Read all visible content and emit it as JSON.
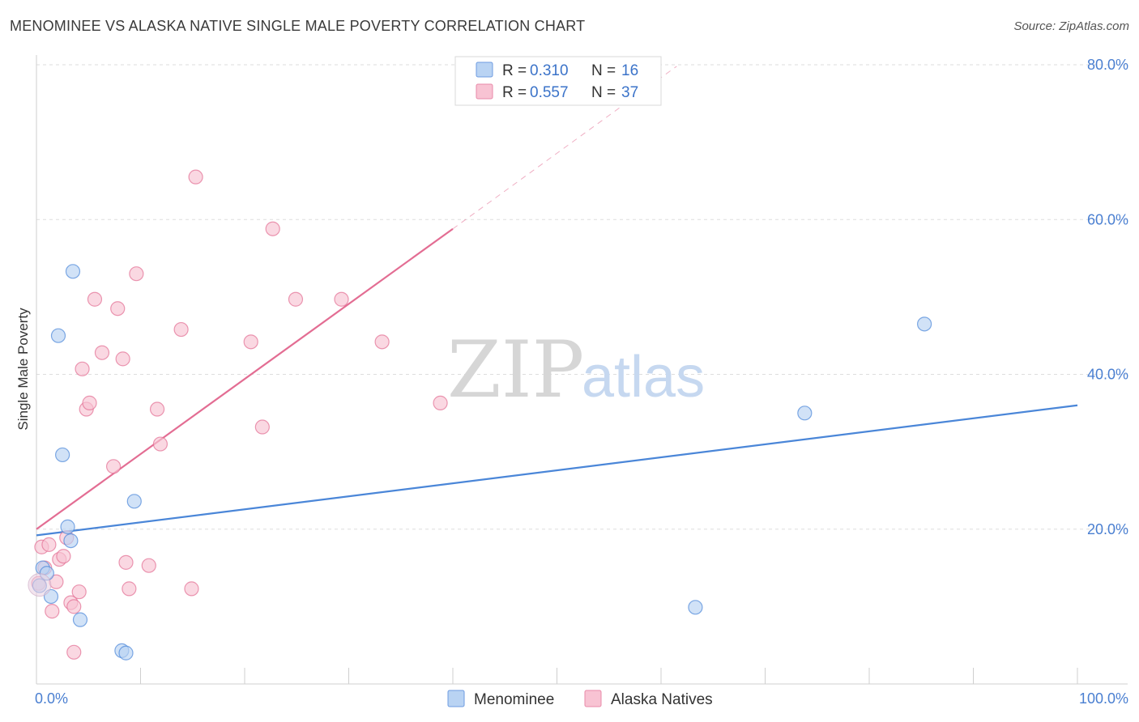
{
  "header": {
    "title": "MENOMINEE VS ALASKA NATIVE SINGLE MALE POVERTY CORRELATION CHART",
    "source": "Source: ZipAtlas.com"
  },
  "watermark": {
    "zip": "ZIP",
    "atlas": "atlas"
  },
  "colors": {
    "blue": "#4a86d8",
    "blue_fill": "#b9d3f3",
    "pink": "#e36d93",
    "pink_fill": "#f8c3d3",
    "grid": "#dddddd",
    "tick_text": "#4a7fd1"
  },
  "chart_data": {
    "type": "scatter",
    "title": "MENOMINEE VS ALASKA NATIVE SINGLE MALE POVERTY CORRELATION CHART",
    "ylabel": "Single Male Poverty",
    "xlabel": "",
    "xlim": [
      0,
      100
    ],
    "ylim": [
      0,
      80
    ],
    "y_ticks": [
      {
        "value": 20,
        "label": "20.0%"
      },
      {
        "value": 40,
        "label": "40.0%"
      },
      {
        "value": 60,
        "label": "60.0%"
      },
      {
        "value": 80,
        "label": "80.0%"
      }
    ],
    "x_ticks": [
      {
        "value": 0,
        "label": "0.0%"
      },
      {
        "value": 100,
        "label": "100.0%"
      }
    ],
    "grid": true,
    "legend_placement": "top-center",
    "legend": [
      {
        "r_label": "R =",
        "r": "0.310",
        "n_label": "N =",
        "n": "16"
      },
      {
        "r_label": "R =",
        "r": "0.557",
        "n_label": "N =",
        "n": "37"
      }
    ],
    "series": [
      {
        "name": "Menominee",
        "color": "#4a86d8",
        "fill": "#b9d3f3",
        "points": [
          [
            0.3,
            12.7
          ],
          [
            0.6,
            15.0
          ],
          [
            1.0,
            14.3
          ],
          [
            1.4,
            11.3
          ],
          [
            2.1,
            45.0
          ],
          [
            2.5,
            29.6
          ],
          [
            3.0,
            20.3
          ],
          [
            3.3,
            18.5
          ],
          [
            3.5,
            53.3
          ],
          [
            4.2,
            8.3
          ],
          [
            8.2,
            4.3
          ],
          [
            8.6,
            4.0
          ],
          [
            9.4,
            23.6
          ],
          [
            63.3,
            9.9
          ],
          [
            73.8,
            35.0
          ],
          [
            85.3,
            46.5
          ]
        ],
        "trend": {
          "x1": 0,
          "y1": 19.2,
          "x2": 100,
          "y2": 36.0
        }
      },
      {
        "name": "Alaska Natives",
        "color": "#e36d93",
        "fill": "#f8c3d3",
        "points": [
          [
            0.2,
            13.0
          ],
          [
            0.5,
            17.7
          ],
          [
            0.8,
            15.0
          ],
          [
            1.2,
            18.0
          ],
          [
            1.5,
            9.4
          ],
          [
            1.9,
            13.2
          ],
          [
            2.2,
            16.1
          ],
          [
            2.6,
            16.5
          ],
          [
            2.9,
            18.9
          ],
          [
            3.3,
            10.5
          ],
          [
            3.6,
            10.0
          ],
          [
            3.6,
            4.1
          ],
          [
            4.1,
            11.9
          ],
          [
            4.4,
            40.7
          ],
          [
            4.8,
            35.5
          ],
          [
            5.1,
            36.3
          ],
          [
            5.6,
            49.7
          ],
          [
            6.3,
            42.8
          ],
          [
            7.4,
            28.1
          ],
          [
            7.8,
            48.5
          ],
          [
            8.3,
            42.0
          ],
          [
            8.6,
            15.7
          ],
          [
            8.9,
            12.3
          ],
          [
            9.6,
            53.0
          ],
          [
            10.8,
            15.3
          ],
          [
            11.6,
            35.5
          ],
          [
            11.9,
            31.0
          ],
          [
            13.9,
            45.8
          ],
          [
            14.9,
            12.3
          ],
          [
            15.3,
            65.5
          ],
          [
            20.6,
            44.2
          ],
          [
            21.7,
            33.2
          ],
          [
            22.7,
            58.8
          ],
          [
            24.9,
            49.7
          ],
          [
            29.3,
            49.7
          ],
          [
            33.2,
            44.2
          ],
          [
            38.8,
            36.3
          ]
        ],
        "trend": {
          "x1": 0,
          "y1": 20.0,
          "x2": 40,
          "y2": 58.8
        },
        "trend_extension": {
          "x1": 40,
          "y1": 58.8,
          "x2": 61.5,
          "y2": 79.8
        }
      }
    ]
  }
}
